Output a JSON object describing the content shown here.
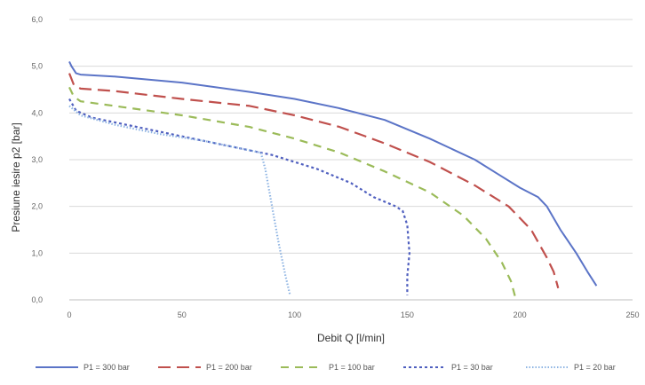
{
  "chart_data": {
    "type": "line",
    "xlabel": "Debit Q [l/min]",
    "ylabel": "Presiune iesire p2 [bar]",
    "xlim": [
      0,
      250
    ],
    "ylim": [
      0,
      6
    ],
    "xticks": [
      "0",
      "50",
      "100",
      "150",
      "200",
      "250"
    ],
    "yticks": [
      "0,0",
      "1,0",
      "2,0",
      "3,0",
      "4,0",
      "5,0",
      "6,0"
    ],
    "grid": "horizontal",
    "legend_position": "bottom",
    "series": [
      {
        "name": "P1 = 300 bar",
        "color": "#5b74c7",
        "dash": "solid",
        "points": [
          [
            0,
            5.1
          ],
          [
            1,
            5.0
          ],
          [
            3,
            4.85
          ],
          [
            5,
            4.82
          ],
          [
            20,
            4.78
          ],
          [
            50,
            4.65
          ],
          [
            80,
            4.45
          ],
          [
            100,
            4.3
          ],
          [
            120,
            4.1
          ],
          [
            140,
            3.85
          ],
          [
            160,
            3.45
          ],
          [
            180,
            3.0
          ],
          [
            190,
            2.7
          ],
          [
            200,
            2.4
          ],
          [
            208,
            2.2
          ],
          [
            212,
            2.0
          ],
          [
            218,
            1.5
          ],
          [
            225,
            1.0
          ],
          [
            230,
            0.6
          ],
          [
            234,
            0.3
          ]
        ]
      },
      {
        "name": "P1 = 200 bar",
        "color": "#c0504d",
        "dash": "long-dash",
        "points": [
          [
            0,
            4.85
          ],
          [
            2,
            4.6
          ],
          [
            5,
            4.52
          ],
          [
            20,
            4.47
          ],
          [
            50,
            4.3
          ],
          [
            80,
            4.15
          ],
          [
            100,
            3.95
          ],
          [
            120,
            3.7
          ],
          [
            140,
            3.35
          ],
          [
            160,
            2.95
          ],
          [
            180,
            2.45
          ],
          [
            195,
            2.0
          ],
          [
            205,
            1.5
          ],
          [
            212,
            0.9
          ],
          [
            215,
            0.6
          ],
          [
            217,
            0.25
          ]
        ]
      },
      {
        "name": "P1 = 100 bar",
        "color": "#9bbb59",
        "dash": "dash",
        "points": [
          [
            0,
            4.55
          ],
          [
            2,
            4.35
          ],
          [
            5,
            4.25
          ],
          [
            20,
            4.15
          ],
          [
            50,
            3.95
          ],
          [
            80,
            3.7
          ],
          [
            100,
            3.45
          ],
          [
            120,
            3.15
          ],
          [
            140,
            2.75
          ],
          [
            160,
            2.3
          ],
          [
            175,
            1.8
          ],
          [
            185,
            1.3
          ],
          [
            192,
            0.8
          ],
          [
            196,
            0.4
          ],
          [
            198,
            0.05
          ]
        ]
      },
      {
        "name": "P1 = 30 bar",
        "color": "#4f5fbf",
        "dash": "dot",
        "points": [
          [
            0,
            4.3
          ],
          [
            3,
            4.05
          ],
          [
            10,
            3.9
          ],
          [
            30,
            3.7
          ],
          [
            50,
            3.5
          ],
          [
            70,
            3.3
          ],
          [
            90,
            3.1
          ],
          [
            110,
            2.8
          ],
          [
            125,
            2.5
          ],
          [
            135,
            2.2
          ],
          [
            145,
            2.0
          ],
          [
            148,
            1.9
          ],
          [
            150,
            1.6
          ],
          [
            151,
            1.0
          ],
          [
            150,
            0.5
          ],
          [
            150,
            0.1
          ]
        ]
      },
      {
        "name": "P1 = 20 bar",
        "color": "#8eb4e3",
        "dash": "fine-dot",
        "points": [
          [
            0,
            4.15
          ],
          [
            5,
            3.95
          ],
          [
            20,
            3.75
          ],
          [
            40,
            3.55
          ],
          [
            60,
            3.4
          ],
          [
            75,
            3.25
          ],
          [
            85,
            3.15
          ],
          [
            87,
            2.8
          ],
          [
            90,
            2.0
          ],
          [
            93,
            1.2
          ],
          [
            96,
            0.5
          ],
          [
            98,
            0.1
          ]
        ]
      }
    ]
  }
}
